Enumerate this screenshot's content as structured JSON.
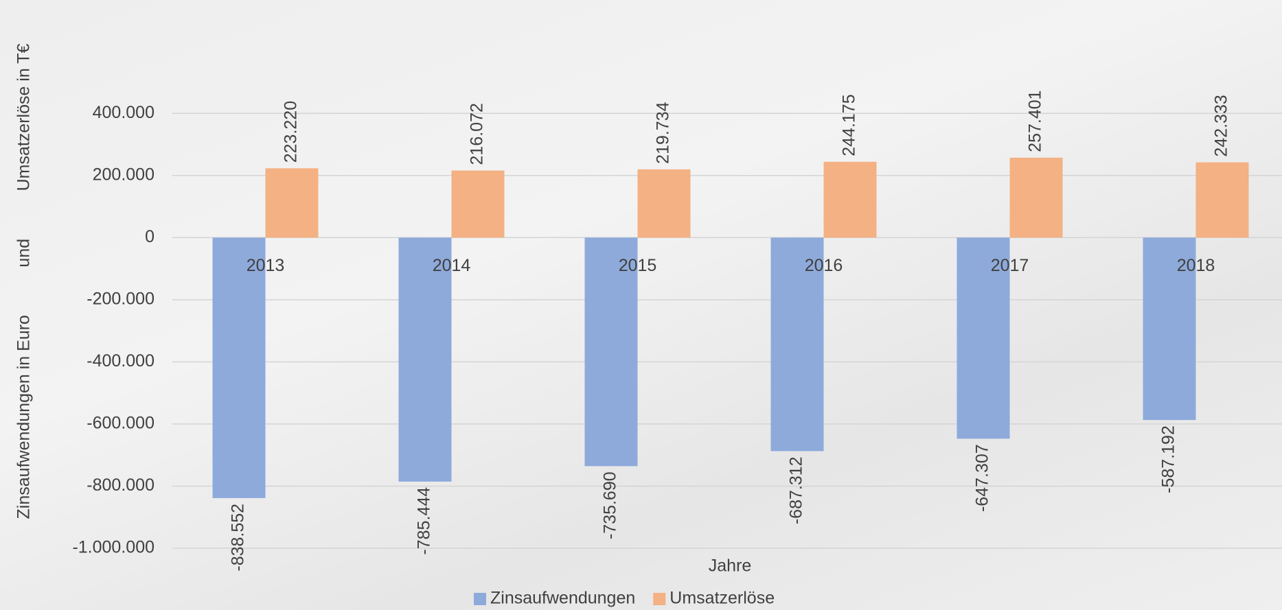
{
  "chart_data": {
    "type": "bar",
    "y_label": "Zinsaufwendungen in Euro          und          Umsatzerlöse in T€",
    "x_label": "Jahre",
    "categories": [
      "2013",
      "2014",
      "2015",
      "2016",
      "2017",
      "2018"
    ],
    "series": [
      {
        "name": "Zinsaufwendungen",
        "color": "#8eaadb",
        "values": [
          -838552,
          -785444,
          -735690,
          -687312,
          -647307,
          -587192
        ],
        "value_labels": [
          "-838.552",
          "-785.444",
          "-735.690",
          "-687.312",
          "-647.307",
          "-587.192"
        ]
      },
      {
        "name": "Umsatzerlöse",
        "color": "#f4b183",
        "values": [
          223220,
          216072,
          219734,
          244175,
          257401,
          242333
        ],
        "value_labels": [
          "223.220",
          "216.072",
          "219.734",
          "244.175",
          "257.401",
          "242.333"
        ]
      }
    ],
    "ylim": [
      -1000000,
      765000
    ],
    "yticks": [
      {
        "value": -1000000,
        "label": "-1.000.000"
      },
      {
        "value": -800000,
        "label": "-800.000"
      },
      {
        "value": -600000,
        "label": "-600.000"
      },
      {
        "value": -400000,
        "label": "-400.000"
      },
      {
        "value": -200000,
        "label": "-200.000"
      },
      0,
      {
        "value": 200000,
        "label": "200.000"
      },
      {
        "value": 400000,
        "label": "400.000"
      }
    ],
    "grid": true
  }
}
